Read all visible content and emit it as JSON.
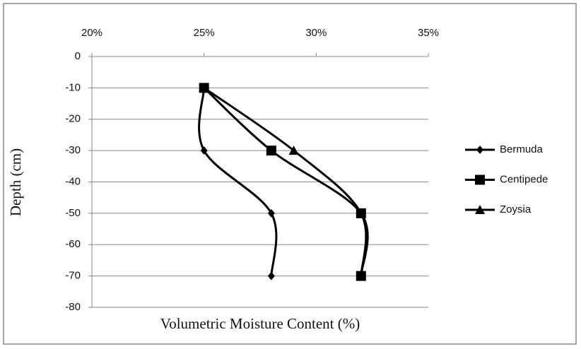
{
  "chart_data": {
    "type": "scatter",
    "x_label": "Volumetric Moisture Content (%)",
    "y_label": "Depth (cm)",
    "xlim": [
      20,
      35
    ],
    "xticks": [
      {
        "value": 20,
        "label": "20%"
      },
      {
        "value": 25,
        "label": "25%"
      },
      {
        "value": 30,
        "label": "30%"
      },
      {
        "value": 35,
        "label": "35%"
      }
    ],
    "ylim": [
      -80,
      0
    ],
    "yticks": [
      0,
      -10,
      -20,
      -30,
      -40,
      -50,
      -60,
      -70,
      -80
    ],
    "grid": true,
    "legend": "right",
    "series": [
      {
        "name": "Bermuda",
        "color": "#000000",
        "marker": "diamond",
        "x": [
          25,
          25,
          28,
          28
        ],
        "values": [
          -10,
          -30,
          -50,
          -70
        ]
      },
      {
        "name": "Centipede",
        "color": "#000000",
        "marker": "square",
        "x": [
          25,
          28,
          32,
          32
        ],
        "values": [
          -10,
          -30,
          -50,
          -70
        ]
      },
      {
        "name": "Zoysia",
        "color": "#000000",
        "marker": "triangle",
        "x": [
          25,
          29,
          32,
          32
        ],
        "values": [
          -10,
          -30,
          -50,
          -70
        ]
      }
    ]
  }
}
